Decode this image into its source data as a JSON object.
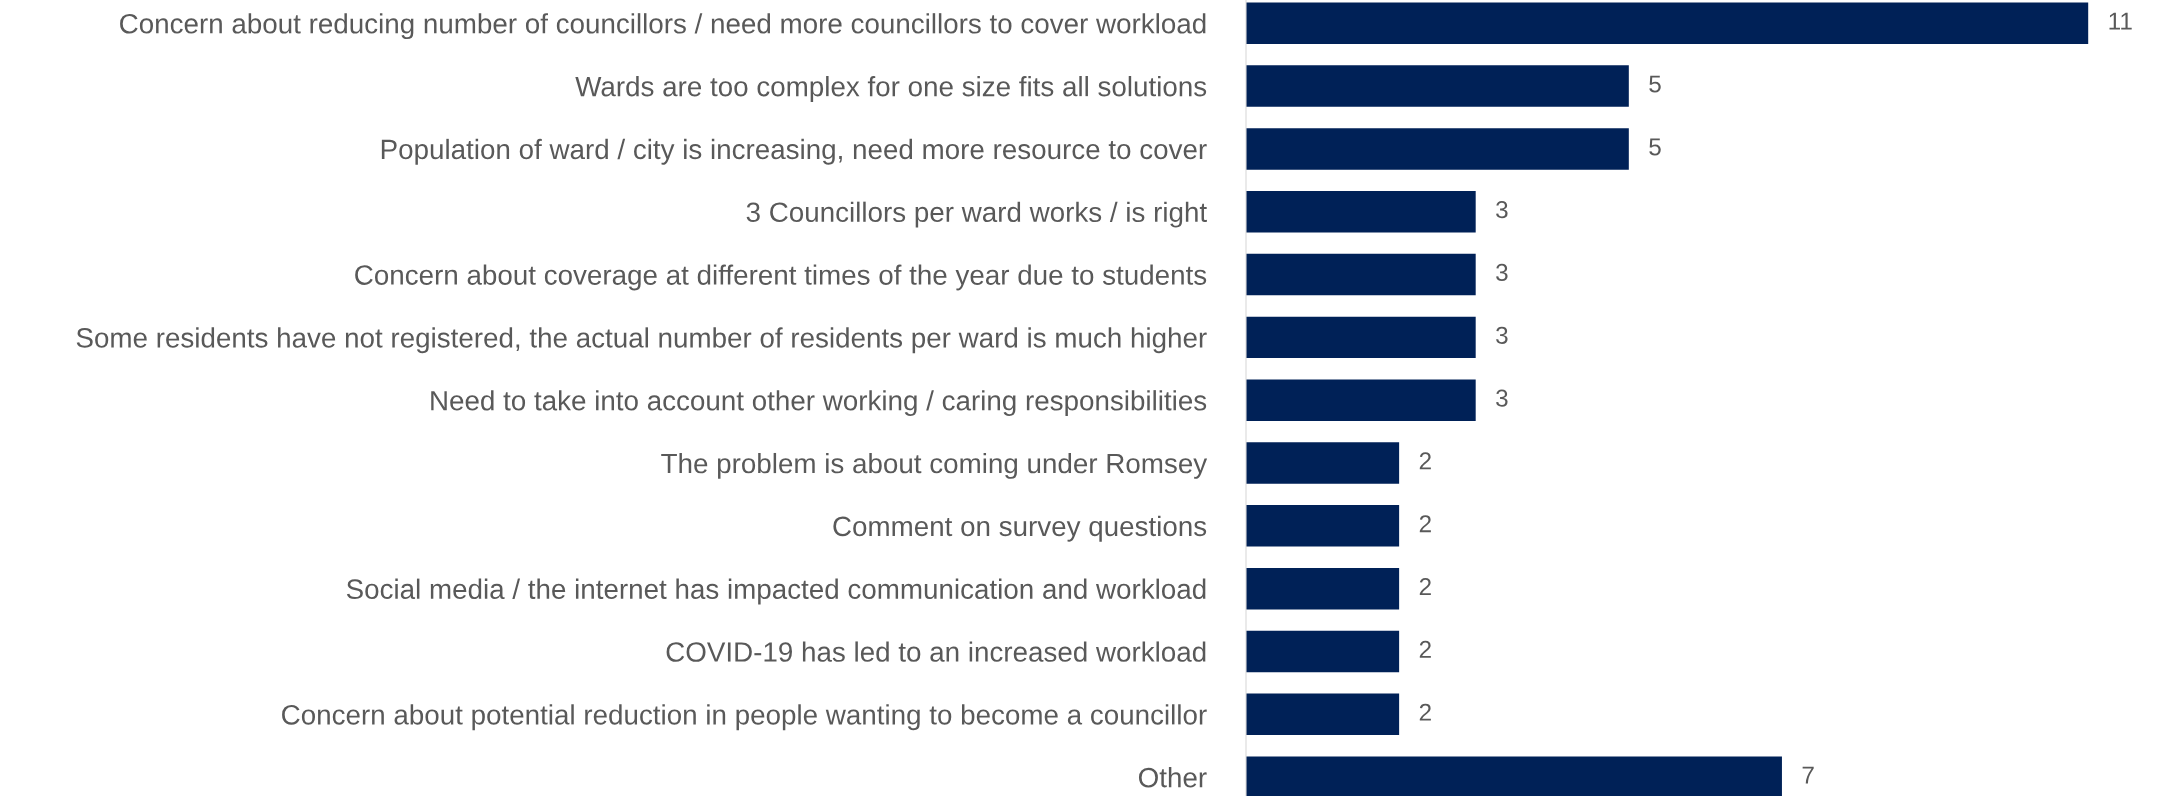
{
  "chart_data": {
    "type": "bar",
    "orientation": "horizontal",
    "categories": [
      "Concern about reducing number of councillors / need more councillors to cover workload",
      "Wards are too complex for one size fits all solutions",
      "Population of ward / city is increasing, need more resource to cover",
      "3 Councillors per ward works / is right",
      "Concern about coverage at different times of the year due to students",
      "Some residents have not registered, the actual number of residents per ward is much higher",
      "Need to take into account other working / caring responsibilities",
      "The problem is about coming under Romsey",
      "Comment on survey questions",
      "Social media / the internet has impacted communication and workload",
      "COVID-19 has led to an increased workload",
      "Concern about potential reduction in people wanting to become a councillor",
      "Other"
    ],
    "values": [
      11,
      5,
      5,
      3,
      3,
      3,
      3,
      2,
      2,
      2,
      2,
      2,
      7
    ],
    "color": "#002157",
    "data_labels": true,
    "grid": false,
    "legend": false
  }
}
